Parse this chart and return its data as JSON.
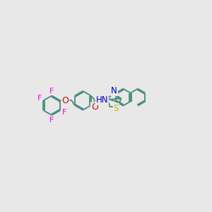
{
  "bg_color": "#e8e8e8",
  "bond_color": "#4a8a7e",
  "bond_width": 1.3,
  "atom_colors": {
    "F": "#ee00ee",
    "O": "#dd0000",
    "N": "#0000cc",
    "S": "#bbbb00",
    "C": "#4a8a7e"
  },
  "ring_r": 0.55,
  "naph_r": 0.5,
  "thz_r": 0.42
}
